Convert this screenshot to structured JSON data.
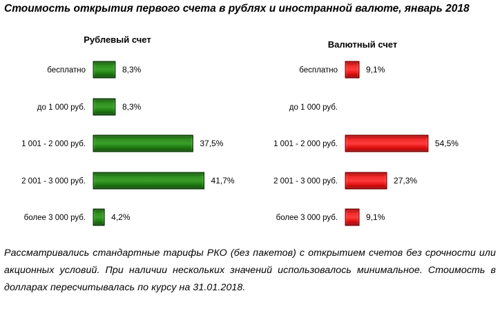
{
  "title": "Стоимость открытия первого счета в рублях и иностранной валюте, январь 2018",
  "footnote": "Рассматривались стандартные тарифы РКО (без пакетов) с открытием счетов без срочности или акционных условий. При наличии нескольких значений использовалось минимальное. Стоимость в долларах пересчитывалась по курсу на 31.01.2018.",
  "colors": {
    "ruble": "#1e7a10",
    "currency": "#e01010"
  },
  "chart_data": [
    {
      "type": "bar",
      "orientation": "horizontal",
      "title": "Рублевый счет",
      "categories": [
        "бесплатно",
        "до 1 000 руб.",
        "1 001 - 2 000 руб.",
        "2 001 - 3 000 руб.",
        "более 3 000 руб."
      ],
      "values": [
        8.3,
        8.3,
        37.5,
        41.7,
        4.2
      ],
      "labels": [
        "8,3%",
        "8,3%",
        "37,5%",
        "41,7%",
        "4,2%"
      ],
      "xlim": [
        0,
        60
      ],
      "color": "#1e7a10"
    },
    {
      "type": "bar",
      "orientation": "horizontal",
      "title": "Валютный счет",
      "categories": [
        "бесплатно",
        "до 1 000 руб.",
        "1 001 - 2 000 руб.",
        "2 001 - 3 000 руб.",
        "более 3 000 руб."
      ],
      "values": [
        9.1,
        0,
        54.5,
        27.3,
        9.1
      ],
      "labels": [
        "9,1%",
        "",
        "54,5%",
        "27,3%",
        "9,1%"
      ],
      "xlim": [
        0,
        60
      ],
      "color": "#e01010"
    }
  ]
}
